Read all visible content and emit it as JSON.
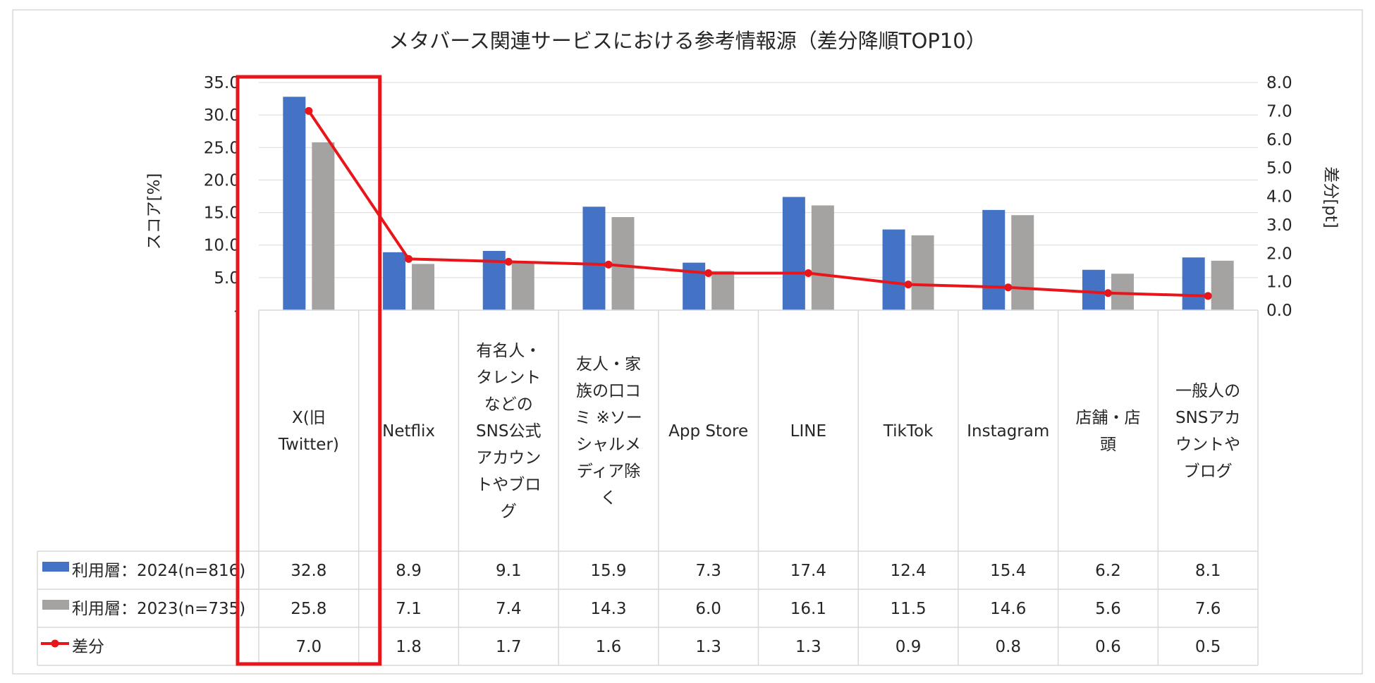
{
  "chart_data": {
    "type": "bar",
    "title": "メタバース関連サービスにおける参考情報源（差分降順TOP10）",
    "ylabel": "スコア[%]",
    "y2label": "差分[pt]",
    "ylim": [
      0,
      35
    ],
    "y_ticks": [
      "-",
      "5.0",
      "10.0",
      "15.0",
      "20.0",
      "25.0",
      "30.0",
      "35.0"
    ],
    "y2lim": [
      0,
      8
    ],
    "y2_ticks": [
      "0.0",
      "1.0",
      "2.0",
      "3.0",
      "4.0",
      "5.0",
      "6.0",
      "7.0",
      "8.0"
    ],
    "categories": [
      [
        "X(旧",
        "Twitter)"
      ],
      [
        "Netflix"
      ],
      [
        "有名人・",
        "タレント",
        "などの",
        "SNS公式",
        "アカウン",
        "トやブロ",
        "グ"
      ],
      [
        "友人・家",
        "族の口コ",
        "ミ ※ソー",
        "シャルメ",
        "ディア除",
        "く"
      ],
      [
        "App Store"
      ],
      [
        "LINE"
      ],
      [
        "TikTok"
      ],
      [
        "Instagram"
      ],
      [
        "店舗・店",
        "頭"
      ],
      [
        "一般人の",
        "SNSアカ",
        "ウントや",
        "ブログ"
      ]
    ],
    "series": [
      {
        "name": "利用層：2024(n=816)",
        "kind": "bar",
        "axis": "left",
        "color": "#4472C4",
        "values": [
          32.8,
          8.9,
          9.1,
          15.9,
          7.3,
          17.4,
          12.4,
          15.4,
          6.2,
          8.1
        ],
        "labels": [
          "32.8",
          "8.9",
          "9.1",
          "15.9",
          "7.3",
          "17.4",
          "12.4",
          "15.4",
          "6.2",
          "8.1"
        ]
      },
      {
        "name": "利用層：2023(n=735)",
        "kind": "bar",
        "axis": "left",
        "color": "#A5A2A2",
        "values": [
          25.8,
          7.1,
          7.4,
          14.3,
          6.0,
          16.1,
          11.5,
          14.6,
          5.6,
          7.6
        ],
        "labels": [
          "25.8",
          "7.1",
          "7.4",
          "14.3",
          "6.0",
          "16.1",
          "11.5",
          "14.6",
          "5.6",
          "7.6"
        ]
      },
      {
        "name": "差分",
        "kind": "line",
        "axis": "right",
        "color": "#E8161B",
        "values": [
          7.0,
          1.8,
          1.7,
          1.6,
          1.3,
          1.3,
          0.9,
          0.8,
          0.6,
          0.5
        ],
        "labels": [
          "7.0",
          "1.8",
          "1.7",
          "1.6",
          "1.3",
          "1.3",
          "0.9",
          "0.8",
          "0.6",
          "0.5"
        ]
      }
    ],
    "highlight_category_index": 0,
    "highlight_color": "#E8161B",
    "grid": true,
    "legend": "data-table-left"
  }
}
